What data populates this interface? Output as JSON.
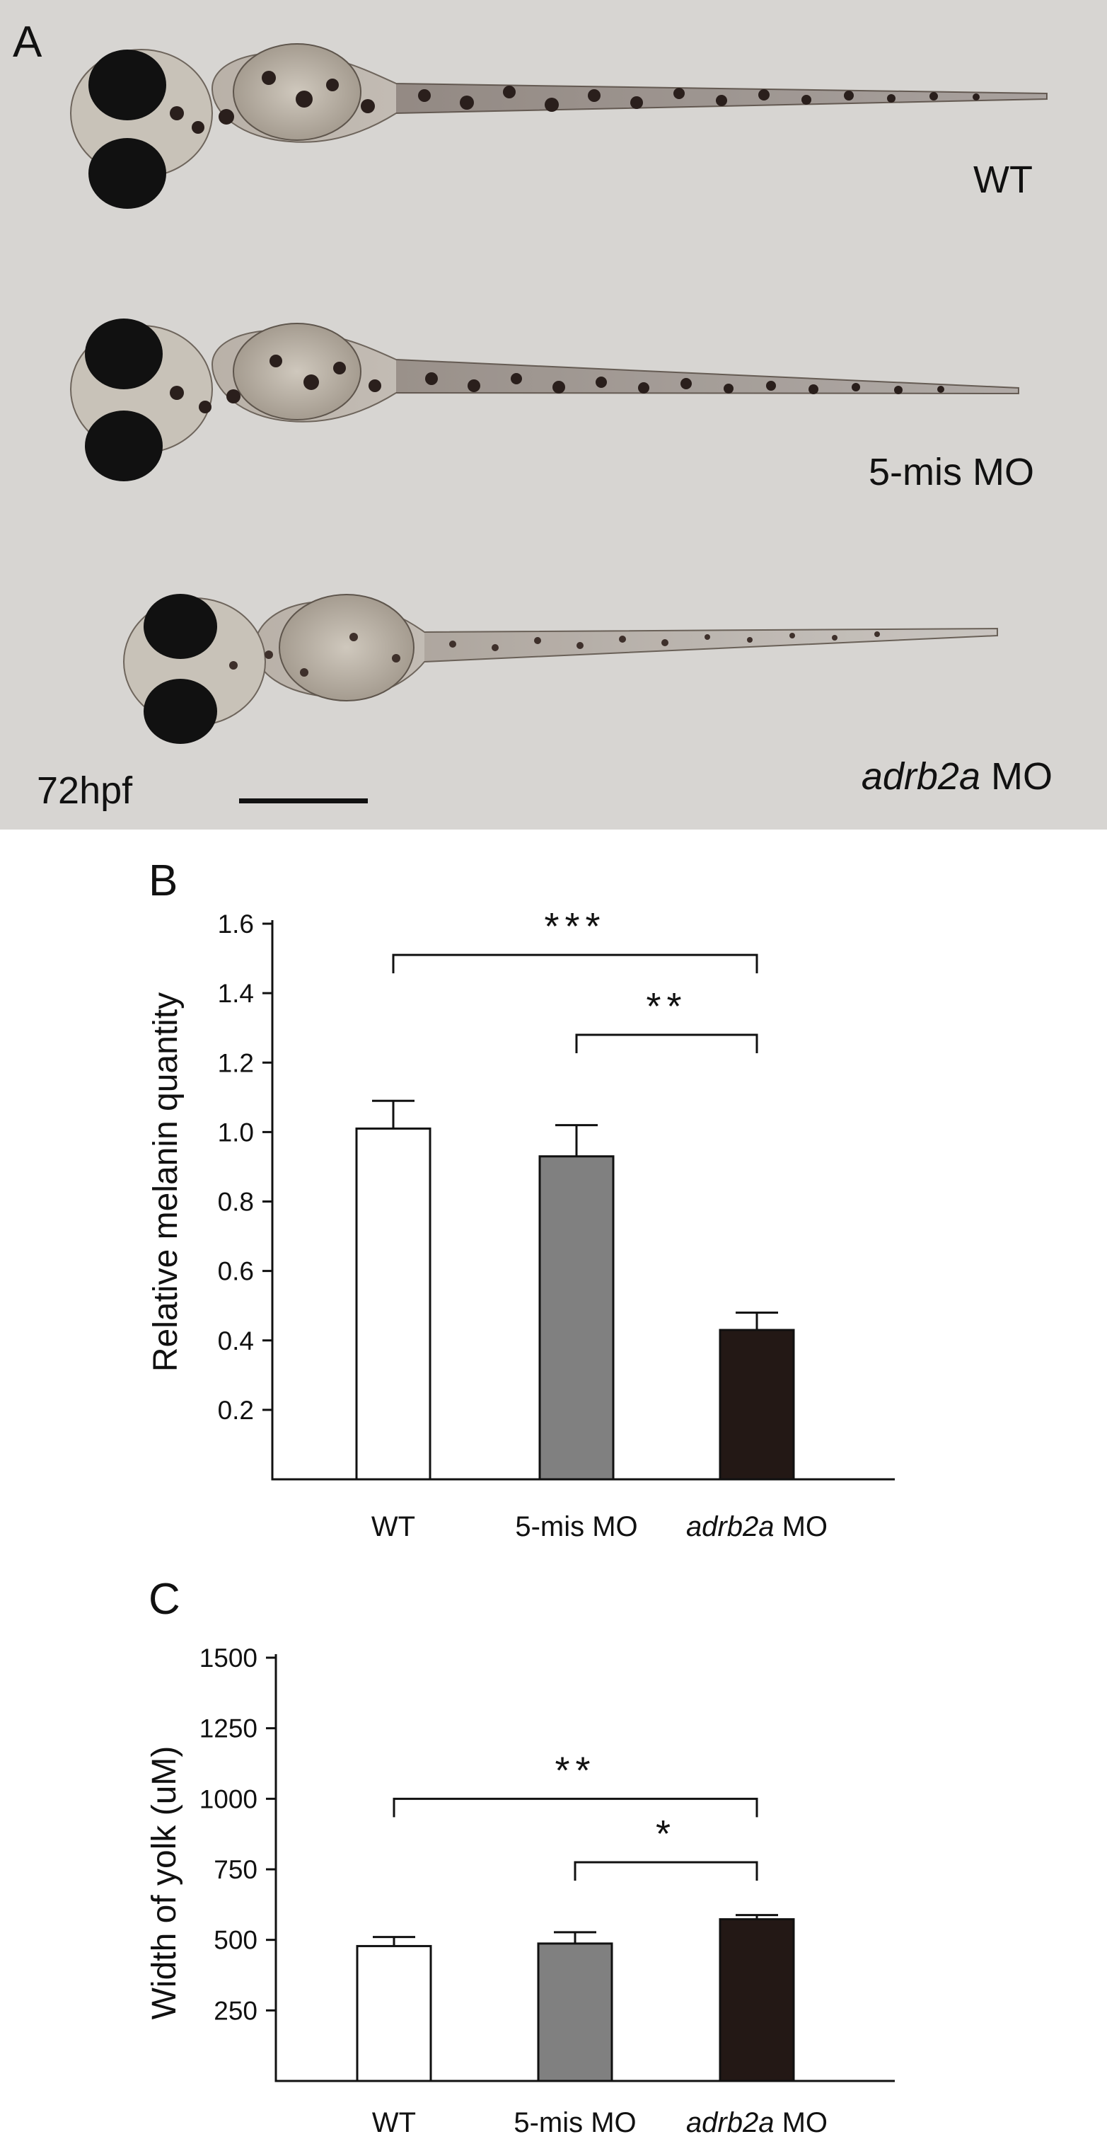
{
  "figure": {
    "panel_a": {
      "letter": "A",
      "age_label": "72hpf",
      "groups": [
        {
          "label": "WT",
          "italic": "",
          "rest": ""
        },
        {
          "label": "5-mis MO",
          "italic": "",
          "rest": ""
        },
        {
          "label": "",
          "italic": "adrb2a",
          "rest": " MO"
        }
      ]
    },
    "panel_b": {
      "letter": "B"
    },
    "panel_c": {
      "letter": "C"
    }
  },
  "colors": {
    "photo_background": "#d7d5d2",
    "bar_wt": "#ffffff",
    "bar_5mis": "#808080",
    "bar_adrb2a": "#231815",
    "axis": "#111111"
  },
  "chart_data": [
    {
      "id": "B",
      "type": "bar",
      "title": "",
      "xlabel": "",
      "ylabel": "Relative melanin quantity",
      "ylim": [
        0,
        1.6
      ],
      "yticks": [
        0.2,
        0.4,
        0.6,
        0.8,
        1.0,
        1.2,
        1.4,
        1.6
      ],
      "ytick_labels": [
        "0.2",
        "0.4",
        "0.6",
        "0.8",
        "1.0",
        "1.2",
        "1.4",
        "1.6"
      ],
      "categories": [
        {
          "plain": "WT",
          "italic": "",
          "suffix": ""
        },
        {
          "plain": "5-mis MO",
          "italic": "",
          "suffix": ""
        },
        {
          "plain": "",
          "italic": "adrb2a",
          "suffix": " MO"
        }
      ],
      "values": [
        1.01,
        0.93,
        0.43
      ],
      "errors": [
        0.08,
        0.09,
        0.05
      ],
      "bar_colors": [
        "#ffffff",
        "#808080",
        "#231815"
      ],
      "significance": [
        {
          "from": 0,
          "to": 2,
          "label": "***",
          "level": 1.51
        },
        {
          "from": 1,
          "to": 2,
          "label": "**",
          "level": 1.28
        }
      ],
      "grid": false
    },
    {
      "id": "C",
      "type": "bar",
      "title": "",
      "xlabel": "",
      "ylabel": "Width of yolk (uM)",
      "ylim": [
        0,
        1500
      ],
      "yticks": [
        250,
        500,
        750,
        1000,
        1250,
        1500
      ],
      "ytick_labels": [
        "250",
        "500",
        "750",
        "1000",
        "1250",
        "1500"
      ],
      "categories": [
        {
          "plain": "WT",
          "italic": "",
          "suffix": ""
        },
        {
          "plain": "5-mis MO",
          "italic": "",
          "suffix": ""
        },
        {
          "plain": "",
          "italic": "adrb2a",
          "suffix": " MO"
        }
      ],
      "values": [
        478,
        487,
        573
      ],
      "errors": [
        32,
        40,
        15
      ],
      "bar_colors": [
        "#ffffff",
        "#808080",
        "#231815"
      ],
      "significance": [
        {
          "from": 0,
          "to": 2,
          "label": "**",
          "level": 1000
        },
        {
          "from": 1,
          "to": 2,
          "label": "*",
          "level": 775
        }
      ],
      "grid": false
    }
  ]
}
